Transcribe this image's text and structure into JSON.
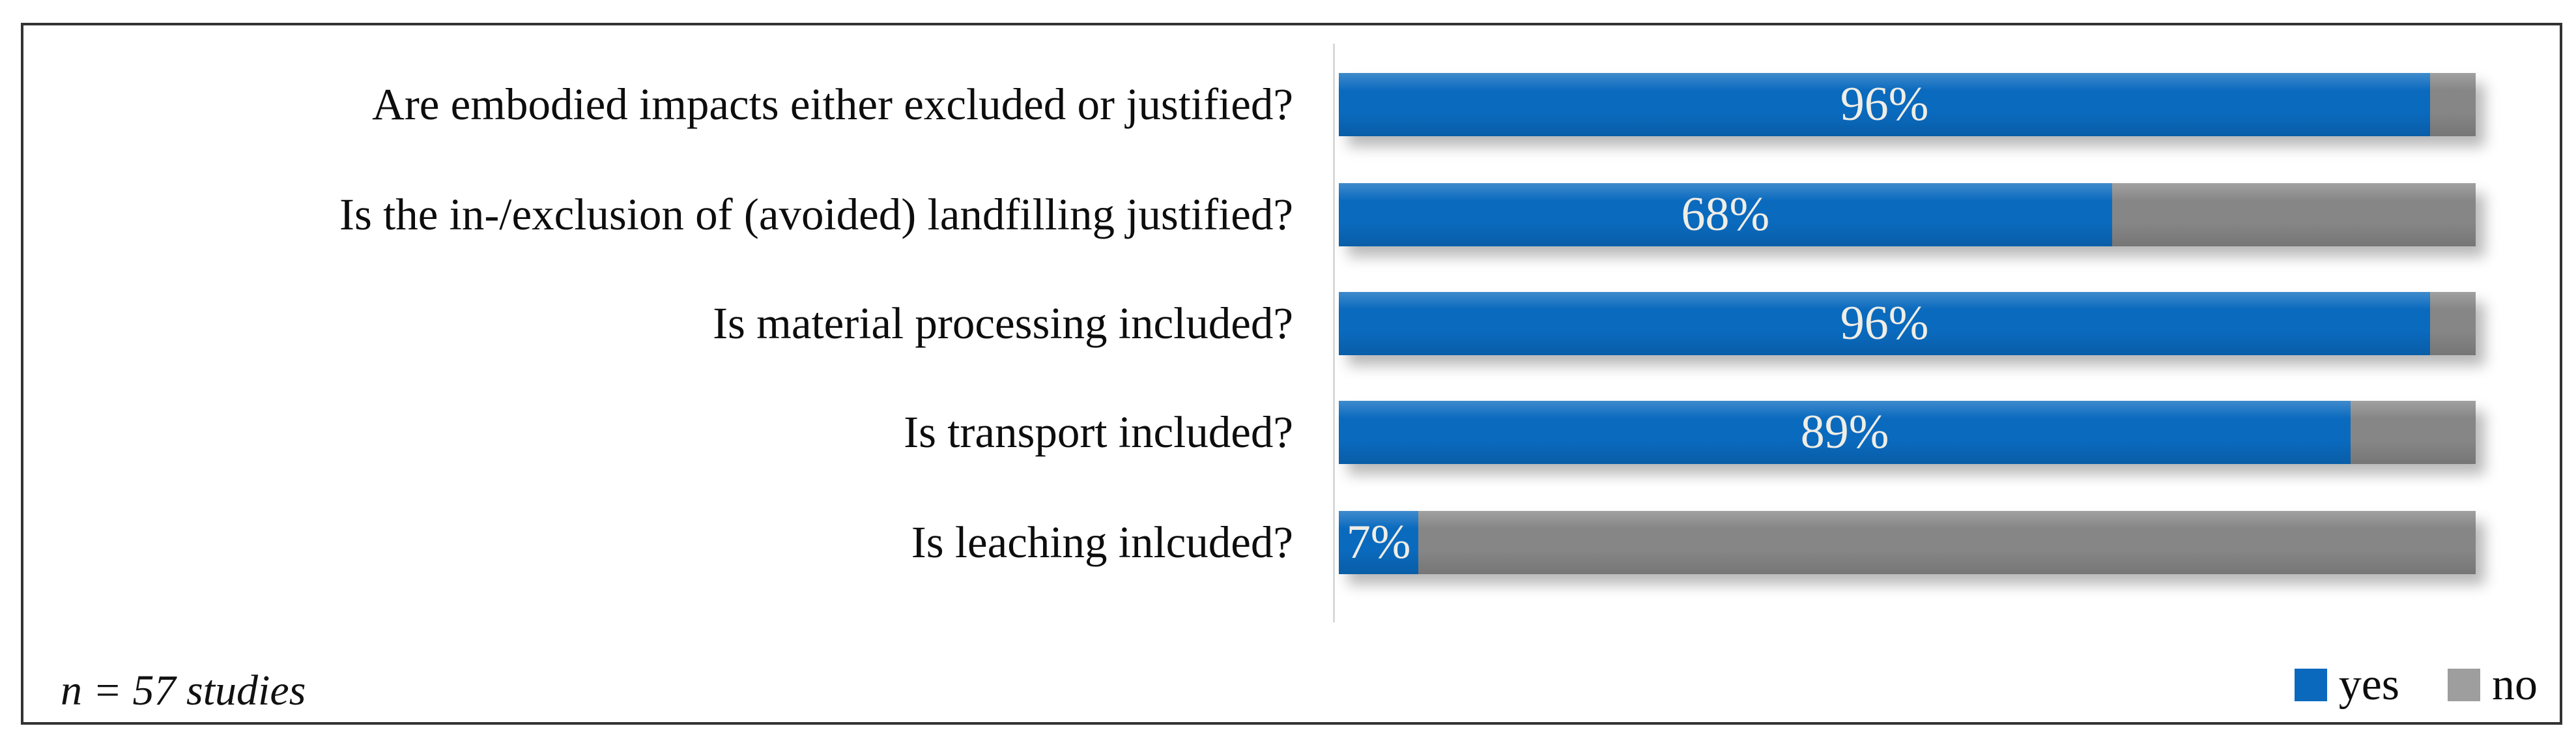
{
  "figure": {
    "note": "n = 57 studies"
  },
  "legend": {
    "items": [
      {
        "label": "yes",
        "color": "#0A69BD"
      },
      {
        "label": "no",
        "color": "#9E9E9E"
      }
    ]
  },
  "colors": {
    "bar_yes": "#0A6ABE",
    "bar_no": "#868686",
    "legend_yes": "#0A69BD",
    "legend_no": "#9E9E9E",
    "percent_text": "#EFEDE5",
    "frame_border": "#333333",
    "axis_line": "#D9D9D9"
  },
  "chart_data": {
    "type": "bar",
    "orientation": "horizontal",
    "stacked": true,
    "units": "percent",
    "xlim": [
      0,
      100
    ],
    "grid": false,
    "legend_position": "bottom-right",
    "annotation": "n = 57 studies",
    "categories": [
      "Are embodied impacts either excluded or justified?",
      "Is the in-/exclusion of (avoided) landfilling justified?",
      "Is material processing included?",
      "Is transport included?",
      "Is leaching inlcuded?"
    ],
    "series": [
      {
        "name": "yes",
        "values": [
          96,
          68,
          96,
          89,
          7
        ]
      },
      {
        "name": "no",
        "values": [
          4,
          32,
          4,
          11,
          93
        ]
      }
    ],
    "rows": [
      {
        "label": "Are embodied impacts either excluded or justified?",
        "yes": 96,
        "no": 4,
        "yes_label": "96%"
      },
      {
        "label": "Is the in-/exclusion of (avoided) landfilling justified?",
        "yes": 68,
        "no": 32,
        "yes_label": "68%"
      },
      {
        "label": "Is material processing included?",
        "yes": 96,
        "no": 4,
        "yes_label": "96%"
      },
      {
        "label": "Is transport included?",
        "yes": 89,
        "no": 11,
        "yes_label": "89%"
      },
      {
        "label": "Is leaching inlcuded?",
        "yes": 7,
        "no": 93,
        "yes_label": "7%"
      }
    ]
  }
}
